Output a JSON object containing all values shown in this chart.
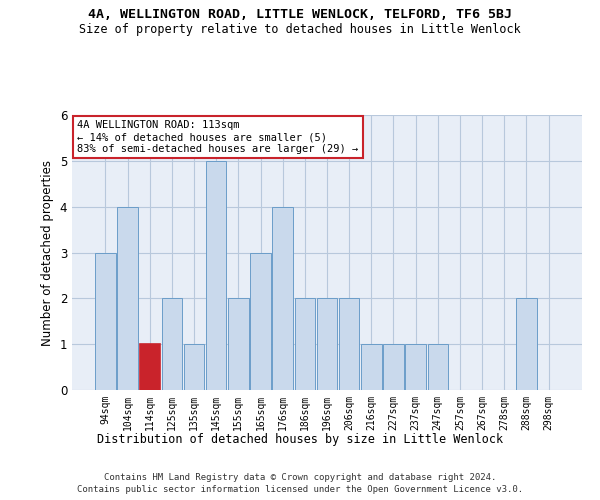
{
  "title": "4A, WELLINGTON ROAD, LITTLE WENLOCK, TELFORD, TF6 5BJ",
  "subtitle": "Size of property relative to detached houses in Little Wenlock",
  "xlabel": "Distribution of detached houses by size in Little Wenlock",
  "ylabel": "Number of detached properties",
  "categories": [
    "94sqm",
    "104sqm",
    "114sqm",
    "125sqm",
    "135sqm",
    "145sqm",
    "155sqm",
    "165sqm",
    "176sqm",
    "186sqm",
    "196sqm",
    "206sqm",
    "216sqm",
    "227sqm",
    "237sqm",
    "247sqm",
    "257sqm",
    "267sqm",
    "278sqm",
    "288sqm",
    "298sqm"
  ],
  "values": [
    3,
    4,
    1,
    2,
    1,
    5,
    2,
    3,
    4,
    2,
    2,
    2,
    1,
    1,
    1,
    1,
    0,
    0,
    0,
    2,
    0
  ],
  "highlight_index": 2,
  "bar_color": "#c9d9ec",
  "highlight_color": "#c9232b",
  "bar_edge_color": "#6b9dc9",
  "highlight_edge_color": "#c9232b",
  "annotation_text": "4A WELLINGTON ROAD: 113sqm\n← 14% of detached houses are smaller (5)\n83% of semi-detached houses are larger (29) →",
  "annotation_box_edge": "#c9232b",
  "ylim": [
    0,
    6
  ],
  "yticks": [
    0,
    1,
    2,
    3,
    4,
    5,
    6
  ],
  "footer1": "Contains HM Land Registry data © Crown copyright and database right 2024.",
  "footer2": "Contains public sector information licensed under the Open Government Licence v3.0.",
  "bg_color": "#ffffff",
  "plot_bg_color": "#e8eef7",
  "grid_color": "#b8c8dc"
}
